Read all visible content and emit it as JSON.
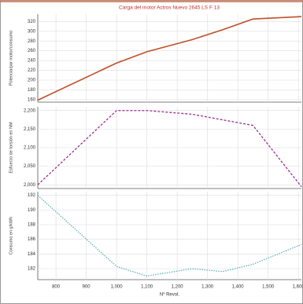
{
  "chart_data": [
    {
      "type": "line",
      "title": "Carga del motor Actros Nuevo 2645 LS F 13",
      "ylabel": "Potencia/par motor/consumo",
      "x": [
        740,
        1000,
        1100,
        1250,
        1350,
        1450,
        1610
      ],
      "series": [
        {
          "color": "#c0502a",
          "values": [
            159,
            235,
            258,
            283,
            303,
            325,
            330
          ]
        }
      ],
      "xlim": [
        740,
        1610
      ],
      "ylim": [
        155,
        335
      ],
      "yticks": [
        160,
        180,
        200,
        220,
        240,
        260,
        280,
        300,
        320
      ],
      "grid": true
    },
    {
      "type": "line",
      "ylabel": "Esfuerzo de torsión en NM",
      "x": [
        740,
        1000,
        1100,
        1250,
        1350,
        1450,
        1610
      ],
      "series": [
        {
          "color": "#9b2f8f",
          "values": [
            2000,
            2200,
            2200,
            2190,
            2175,
            2160,
            1995
          ]
        }
      ],
      "xlim": [
        740,
        1610
      ],
      "ylim": [
        1990,
        2210
      ],
      "yticks": [
        {
          "value": 2000,
          "label": "2,000"
        },
        {
          "value": 2050,
          "label": "2,050"
        },
        {
          "value": 2100,
          "label": "2,100"
        },
        {
          "value": 2150,
          "label": "2,150"
        },
        {
          "value": 2200,
          "label": "2,200"
        }
      ],
      "grid": true
    },
    {
      "type": "line",
      "ylabel": "Consumo en g/kWh",
      "xlabel": "Nº Revol.",
      "x": [
        740,
        1000,
        1100,
        1250,
        1350,
        1450,
        1610
      ],
      "series": [
        {
          "color": "#5fb3b3",
          "values": [
            192,
            182.3,
            181,
            182,
            181.6,
            182.6,
            185.3
          ]
        }
      ],
      "xlim": [
        740,
        1610
      ],
      "ylim": [
        180.5,
        192.5
      ],
      "yticks": [
        182,
        184,
        186,
        188,
        190,
        192
      ],
      "xticks": [
        800,
        900,
        {
          "value": 1000,
          "label": "1,000"
        },
        {
          "value": 1100,
          "label": "1,100"
        },
        {
          "value": 1200,
          "label": "1,200"
        },
        {
          "value": 1300,
          "label": "1,300"
        },
        {
          "value": 1400,
          "label": "1,400"
        },
        {
          "value": 1500,
          "label": "1,500"
        },
        {
          "value": 1600,
          "label": "1,600"
        }
      ],
      "grid": true
    }
  ]
}
